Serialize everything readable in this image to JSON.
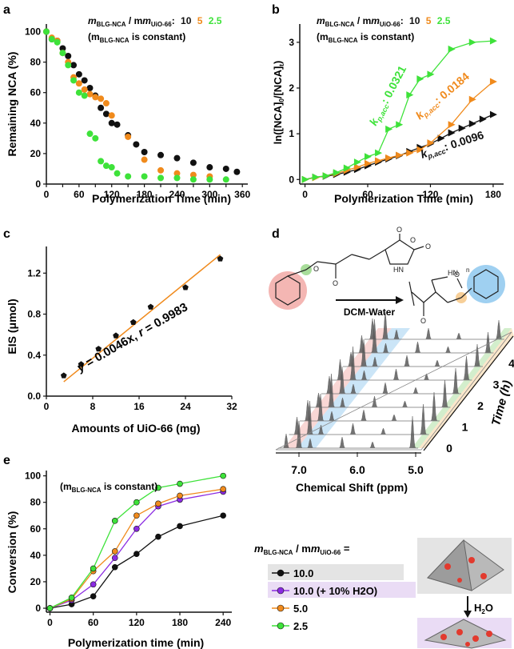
{
  "colors": {
    "black": "#111111",
    "orange": "#f08a1c",
    "green": "#3ee23a",
    "purple": "#8b2be2",
    "red": "#e8504a",
    "blue": "#6fb7e8"
  },
  "chart_data": [
    {
      "panel": "a",
      "type": "scatter",
      "xlabel": "Polymerization Time (min)",
      "ylabel": "Remaining NCA (%)",
      "xlim": [
        0,
        370
      ],
      "ylim": [
        0,
        105
      ],
      "xticks": [
        "0",
        "30",
        "60",
        "90",
        "120",
        "150",
        "180",
        "210",
        "240",
        "270",
        "300",
        "330",
        "360"
      ],
      "yticks": [
        "0",
        "20",
        "40",
        "60",
        "80",
        "100"
      ],
      "legend_prefix": "m",
      "legend_sub1": "BLG-NCA",
      "legend_sep": " / m",
      "legend_sub2": "UiO-66",
      "legend_colon": ":",
      "legend_values": [
        "10",
        "5",
        "2.5"
      ],
      "note_pre": "(m",
      "note_sub": "BLG-NCA",
      "note_post": " is constant)",
      "series": [
        {
          "name": "10",
          "color": "black",
          "points": [
            [
              0,
              100
            ],
            [
              10,
              95
            ],
            [
              20,
              94
            ],
            [
              30,
              89
            ],
            [
              40,
              84
            ],
            [
              50,
              78
            ],
            [
              60,
              72
            ],
            [
              70,
              68
            ],
            [
              80,
              63
            ],
            [
              90,
              58
            ],
            [
              100,
              50
            ],
            [
              110,
              46
            ],
            [
              120,
              40
            ],
            [
              130,
              39
            ],
            [
              150,
              32
            ],
            [
              165,
              26
            ],
            [
              180,
              21
            ],
            [
              210,
              19
            ],
            [
              240,
              17
            ],
            [
              270,
              14
            ],
            [
              300,
              11
            ],
            [
              330,
              10
            ],
            [
              350,
              8
            ]
          ]
        },
        {
          "name": "5",
          "color": "orange",
          "points": [
            [
              0,
              100
            ],
            [
              10,
              96
            ],
            [
              20,
              94
            ],
            [
              30,
              86
            ],
            [
              40,
              80
            ],
            [
              50,
              70
            ],
            [
              60,
              66
            ],
            [
              70,
              62
            ],
            [
              80,
              59
            ],
            [
              90,
              57
            ],
            [
              100,
              56
            ],
            [
              110,
              53
            ],
            [
              120,
              45
            ],
            [
              150,
              31
            ],
            [
              180,
              16
            ],
            [
              210,
              9
            ],
            [
              240,
              7
            ],
            [
              270,
              6
            ],
            [
              300,
              5
            ]
          ]
        },
        {
          "name": "2.5",
          "color": "green",
          "points": [
            [
              0,
              100
            ],
            [
              10,
              95
            ],
            [
              20,
              93
            ],
            [
              30,
              86
            ],
            [
              40,
              78
            ],
            [
              50,
              68
            ],
            [
              60,
              60
            ],
            [
              70,
              58
            ],
            [
              80,
              33
            ],
            [
              90,
              30
            ],
            [
              100,
              15
            ],
            [
              110,
              12
            ],
            [
              120,
              11
            ],
            [
              130,
              7
            ],
            [
              150,
              5
            ],
            [
              180,
              5
            ],
            [
              210,
              4
            ],
            [
              240,
              4
            ],
            [
              270,
              3
            ],
            [
              300,
              3
            ],
            [
              330,
              3
            ]
          ]
        }
      ]
    },
    {
      "panel": "b",
      "type": "line",
      "xlabel": "Polymerization Time (min)",
      "ylabel": "ln([NCA]0/[NCA]t)",
      "ylabel_parts": [
        "ln([NCA]",
        "0",
        "/[NCA]",
        "t",
        ")"
      ],
      "xlim": [
        -5,
        190
      ],
      "ylim": [
        -0.1,
        3.4
      ],
      "xticks": [
        "0",
        "60",
        "120",
        "180"
      ],
      "yticks": [
        "0",
        "1",
        "2",
        "3"
      ],
      "legend_values": [
        "10",
        "5",
        "2.5"
      ],
      "note_pre": "(m",
      "note_sub": "BLG-NCA",
      "note_post": " is constant)",
      "k_prefix": "k",
      "k_sub": "p,acc",
      "series": [
        {
          "name": "10",
          "color": "black",
          "k": ": 0.0096",
          "points": [
            [
              0,
              0
            ],
            [
              10,
              0.05
            ],
            [
              20,
              0.07
            ],
            [
              30,
              0.11
            ],
            [
              40,
              0.16
            ],
            [
              50,
              0.22
            ],
            [
              60,
              0.3
            ],
            [
              70,
              0.38
            ],
            [
              80,
              0.45
            ],
            [
              90,
              0.52
            ],
            [
              100,
              0.61
            ],
            [
              110,
              0.7
            ],
            [
              120,
              0.78
            ],
            [
              130,
              0.9
            ],
            [
              140,
              1.02
            ],
            [
              150,
              1.12
            ],
            [
              160,
              1.22
            ],
            [
              170,
              1.32
            ],
            [
              180,
              1.42
            ]
          ]
        },
        {
          "name": "5",
          "color": "orange",
          "k": ": 0.0184",
          "points": [
            [
              0,
              0
            ],
            [
              10,
              0.04
            ],
            [
              20,
              0.08
            ],
            [
              30,
              0.13
            ],
            [
              40,
              0.2
            ],
            [
              50,
              0.27
            ],
            [
              60,
              0.35
            ],
            [
              70,
              0.41
            ],
            [
              80,
              0.47
            ],
            [
              90,
              0.53
            ],
            [
              100,
              0.58
            ],
            [
              110,
              0.65
            ],
            [
              120,
              0.8
            ],
            [
              140,
              1.2
            ],
            [
              160,
              1.75
            ],
            [
              180,
              2.14
            ]
          ]
        },
        {
          "name": "2.5",
          "color": "green",
          "k": ": 0.0321",
          "points": [
            [
              0,
              0
            ],
            [
              10,
              0.05
            ],
            [
              20,
              0.08
            ],
            [
              30,
              0.15
            ],
            [
              40,
              0.25
            ],
            [
              50,
              0.38
            ],
            [
              60,
              0.5
            ],
            [
              70,
              0.58
            ],
            [
              80,
              1.1
            ],
            [
              90,
              1.2
            ],
            [
              100,
              1.85
            ],
            [
              110,
              2.2
            ],
            [
              120,
              2.3
            ],
            [
              140,
              2.85
            ],
            [
              160,
              3.0
            ],
            [
              180,
              3.03
            ]
          ]
        }
      ]
    },
    {
      "panel": "c",
      "type": "scatter",
      "xlabel": "Amounts of UiO-66 (mg)",
      "ylabel": "EIS (μmol)",
      "xlim": [
        0,
        32
      ],
      "ylim": [
        0,
        1.46
      ],
      "xticks": [
        "0",
        "8",
        "16",
        "24",
        "32"
      ],
      "yticks": [
        "0.0",
        "0.4",
        "0.8",
        "1.2"
      ],
      "fit_pre": "y",
      "fit_mid": " = 0.0046x, ",
      "fit_r": "r",
      "fit_post": " = 0.9983",
      "points": [
        [
          3,
          0.2
        ],
        [
          6,
          0.31
        ],
        [
          9,
          0.46
        ],
        [
          12,
          0.59
        ],
        [
          15,
          0.72
        ],
        [
          18,
          0.87
        ],
        [
          24,
          1.06
        ],
        [
          30,
          1.34
        ]
      ],
      "fit": [
        [
          3,
          0.14
        ],
        [
          30,
          1.38
        ]
      ]
    },
    {
      "panel": "e",
      "type": "line",
      "xlabel": "Polymerization time (min)",
      "ylabel": "Conversion (%)",
      "xlim": [
        -5,
        252
      ],
      "ylim": [
        -3,
        104
      ],
      "xticks": [
        "0",
        "60",
        "120",
        "180",
        "240"
      ],
      "yticks": [
        "0",
        "20",
        "40",
        "60",
        "80",
        "100"
      ],
      "note_pre": "(m",
      "note_sub": "BLG-NCA",
      "note_post": " is constant)",
      "series": [
        {
          "name": "10.0",
          "color": "black",
          "x": [
            0,
            30,
            60,
            90,
            120,
            150,
            180,
            240
          ],
          "values": [
            0,
            3,
            9,
            31,
            41,
            54,
            62,
            70
          ]
        },
        {
          "name": "10.0 (+ 10% H2O)",
          "color": "purple",
          "x": [
            0,
            30,
            60,
            90,
            120,
            150,
            180,
            240
          ],
          "values": [
            0,
            6,
            18,
            38,
            60,
            77,
            82,
            88
          ]
        },
        {
          "name": "5.0",
          "color": "orange",
          "x": [
            0,
            30,
            60,
            90,
            120,
            150,
            180,
            240
          ],
          "values": [
            0,
            7,
            28,
            43,
            70,
            79,
            85,
            90
          ]
        },
        {
          "name": "2.5",
          "color": "green",
          "x": [
            0,
            30,
            60,
            90,
            120,
            150,
            180,
            240
          ],
          "values": [
            0,
            8,
            30,
            66,
            80,
            91,
            94,
            100
          ]
        }
      ]
    }
  ],
  "panel_d": {
    "label": "d",
    "reaction_label": "DCM-Water",
    "subscript_n": "n",
    "xlabel": "Chemical Shift (ppm)",
    "xticks": [
      "7.0",
      "6.0",
      "5.0"
    ],
    "time_label": "Time (h)",
    "time_ticks": [
      "0",
      "1",
      "2",
      "3",
      "4"
    ]
  },
  "legend_e": {
    "title_pre": "m",
    "title_sub1": "BLG-NCA",
    "title_sep": " / m",
    "title_sub2": "UiO-66",
    "title_post": " =",
    "h2o_label": "H2O",
    "entries": [
      {
        "label": "10.0",
        "color": "black"
      },
      {
        "label": "10.0 (+ 10% H2O)",
        "color": "purple"
      },
      {
        "label": "5.0",
        "color": "orange"
      },
      {
        "label": "2.5",
        "color": "green"
      }
    ]
  }
}
